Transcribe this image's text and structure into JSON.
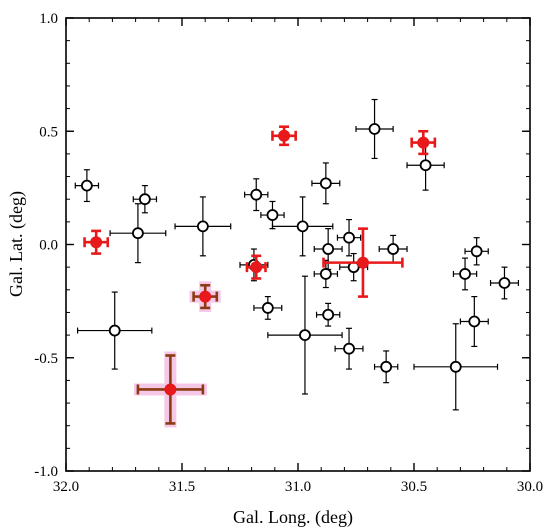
{
  "chart_data": {
    "type": "scatter",
    "xlabel": "Gal. Long. (deg)",
    "ylabel": "Gal. Lat. (deg)",
    "xlim": [
      32.0,
      30.0
    ],
    "ylim": [
      -1.0,
      1.0
    ],
    "x_reversed": true,
    "xticks": [
      32.0,
      31.5,
      31.0,
      30.5,
      30.0
    ],
    "xtick_labels": [
      "32.0",
      "31.5",
      "31.0",
      "30.5",
      "30.0"
    ],
    "yticks": [
      -1.0,
      -0.5,
      0.0,
      0.5,
      1.0
    ],
    "ytick_labels": [
      "-1.0",
      "-0.5",
      "0.0",
      "0.5",
      "1.0"
    ],
    "grid": false,
    "colors": {
      "open_marker": "#000000",
      "filled_marker": "#e8191b",
      "brown_errorbar": "#8b3a12",
      "highlight": "#f5c8e8"
    },
    "series": [
      {
        "style": "open-circle-black-errorbars",
        "points": [
          {
            "x": 31.91,
            "y": 0.26,
            "xerr": 0.05,
            "yerr": 0.07
          },
          {
            "x": 31.66,
            "y": 0.2,
            "xerr": 0.05,
            "yerr": 0.06
          },
          {
            "x": 31.69,
            "y": 0.05,
            "xerr": 0.12,
            "yerr": 0.13
          },
          {
            "x": 31.79,
            "y": -0.38,
            "xerr": 0.16,
            "yerr": 0.17
          },
          {
            "x": 31.41,
            "y": 0.08,
            "xerr": 0.12,
            "yerr": 0.13
          },
          {
            "x": 31.18,
            "y": 0.22,
            "xerr": 0.05,
            "yerr": 0.07
          },
          {
            "x": 31.11,
            "y": 0.13,
            "xerr": 0.05,
            "yerr": 0.06
          },
          {
            "x": 31.19,
            "y": -0.09,
            "xerr": 0.06,
            "yerr": 0.07
          },
          {
            "x": 31.13,
            "y": -0.28,
            "xerr": 0.06,
            "yerr": 0.05
          },
          {
            "x": 30.98,
            "y": 0.08,
            "xerr": 0.13,
            "yerr": 0.13
          },
          {
            "x": 30.97,
            "y": -0.4,
            "xerr": 0.16,
            "yerr": 0.26
          },
          {
            "x": 30.88,
            "y": 0.27,
            "xerr": 0.06,
            "yerr": 0.09
          },
          {
            "x": 30.87,
            "y": -0.02,
            "xerr": 0.06,
            "yerr": 0.09
          },
          {
            "x": 30.88,
            "y": -0.13,
            "xerr": 0.05,
            "yerr": 0.06
          },
          {
            "x": 30.87,
            "y": -0.31,
            "xerr": 0.05,
            "yerr": 0.05
          },
          {
            "x": 30.78,
            "y": 0.03,
            "xerr": 0.05,
            "yerr": 0.08
          },
          {
            "x": 30.76,
            "y": -0.1,
            "xerr": 0.06,
            "yerr": 0.06
          },
          {
            "x": 30.78,
            "y": -0.46,
            "xerr": 0.06,
            "yerr": 0.09
          },
          {
            "x": 30.67,
            "y": 0.51,
            "xerr": 0.08,
            "yerr": 0.13
          },
          {
            "x": 30.59,
            "y": -0.02,
            "xerr": 0.06,
            "yerr": 0.06
          },
          {
            "x": 30.62,
            "y": -0.54,
            "xerr": 0.05,
            "yerr": 0.07
          },
          {
            "x": 30.45,
            "y": 0.35,
            "xerr": 0.08,
            "yerr": 0.11
          },
          {
            "x": 30.32,
            "y": -0.54,
            "xerr": 0.18,
            "yerr": 0.19
          },
          {
            "x": 30.28,
            "y": -0.13,
            "xerr": 0.05,
            "yerr": 0.07
          },
          {
            "x": 30.23,
            "y": -0.03,
            "xerr": 0.05,
            "yerr": 0.06
          },
          {
            "x": 30.24,
            "y": -0.34,
            "xerr": 0.06,
            "yerr": 0.11
          },
          {
            "x": 30.11,
            "y": -0.17,
            "xerr": 0.06,
            "yerr": 0.07
          }
        ]
      },
      {
        "style": "filled-red-red-errorbars",
        "points": [
          {
            "x": 31.87,
            "y": 0.01,
            "xerr": 0.05,
            "yerr": 0.05
          },
          {
            "x": 31.06,
            "y": 0.48,
            "xerr": 0.05,
            "yerr": 0.04
          },
          {
            "x": 30.46,
            "y": 0.45,
            "xerr": 0.05,
            "yerr": 0.05
          },
          {
            "x": 31.18,
            "y": -0.1,
            "xerr": 0.04,
            "yerr": 0.05
          },
          {
            "x": 30.72,
            "y": -0.08,
            "xerr": 0.17,
            "yerr": 0.15
          }
        ]
      },
      {
        "style": "filled-red-brown-errorbars-highlighted",
        "points": [
          {
            "x": 31.4,
            "y": -0.23,
            "xerr": 0.05,
            "yerr": 0.05
          },
          {
            "x": 31.55,
            "y": -0.64,
            "xerr": 0.14,
            "yerr": 0.15
          }
        ]
      }
    ]
  }
}
